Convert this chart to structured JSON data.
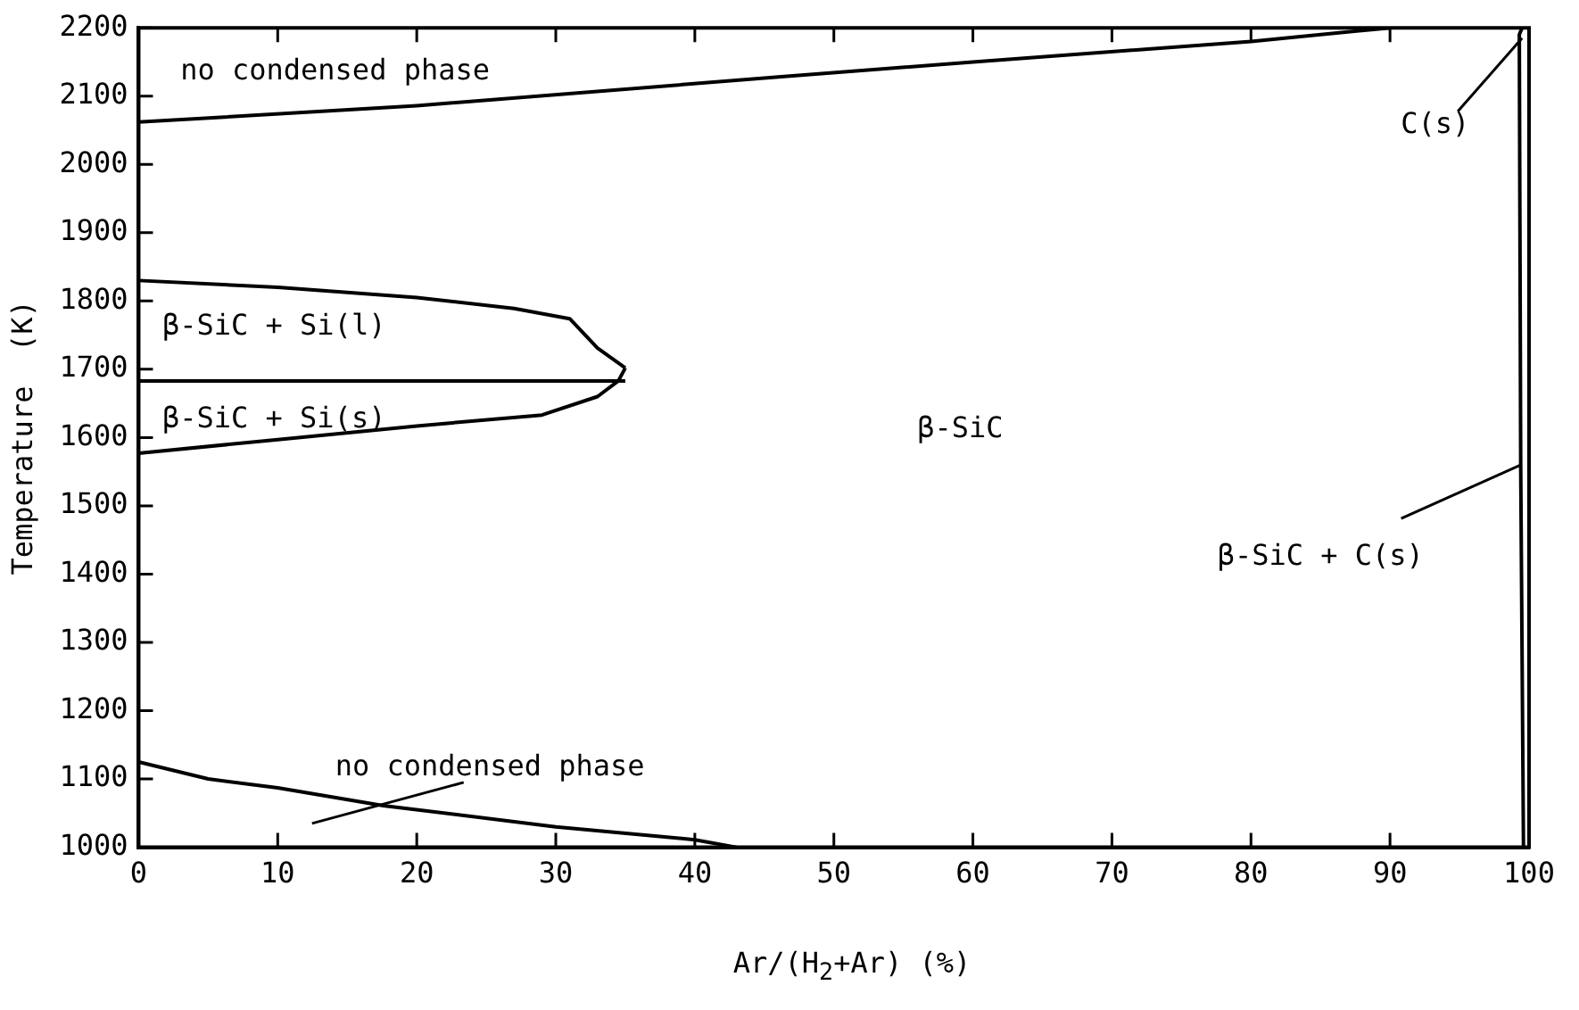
{
  "chart_data": {
    "type": "line",
    "xlabel": "Ar/(H$_{2}$+Ar)  (%)",
    "ylabel": "Temperature  (K)",
    "xlim": [
      0,
      100
    ],
    "xticks": [
      0,
      10,
      20,
      30,
      40,
      50,
      60,
      70,
      80,
      90,
      100
    ],
    "ylim": [
      1000,
      2200
    ],
    "yticks": [
      1000,
      1100,
      1200,
      1300,
      1400,
      1500,
      1600,
      1700,
      1800,
      1900,
      2000,
      2100,
      2200
    ],
    "grid": false,
    "legend": false,
    "marker": "none",
    "line_style": "solid",
    "series": [
      {
        "color": "#000000",
        "x": [
          0,
          20,
          46,
          60,
          80,
          90
        ],
        "values": [
          2062,
          2086,
          2128,
          2150,
          2180,
          2200
        ]
      },
      {
        "color": "#000000",
        "x": [
          0,
          10,
          20,
          27,
          31,
          33,
          35
        ],
        "values": [
          1830,
          1820,
          1805,
          1789,
          1774,
          1731,
          1702
        ]
      },
      {
        "color": "#000000",
        "x": [
          0,
          35
        ],
        "values": [
          1683,
          1683
        ]
      },
      {
        "color": "#000000",
        "x": [
          0,
          10,
          20,
          29,
          33,
          34.5,
          35
        ],
        "values": [
          1577,
          1597,
          1617,
          1633,
          1660,
          1683,
          1702
        ]
      },
      {
        "color": "#000000",
        "x": [
          0,
          5,
          10,
          17.6,
          30,
          40,
          43
        ],
        "values": [
          1125,
          1100,
          1087,
          1061,
          1030,
          1011,
          1000
        ]
      },
      {
        "color": "#000000",
        "x": [
          99.6,
          99.4,
          99.3,
          99.5
        ],
        "values": [
          1000,
          1560,
          2190,
          2200
        ]
      }
    ],
    "annotations": [
      "no condensed phase",
      "β-SiC + Si(l)",
      "β-SiC + Si(s)",
      "β-SiC",
      {
        "text": "no condensed phase",
        "x": 17.6,
        "y": 1061
      },
      {
        "text": "C(s)",
        "x": 99.5,
        "y": 2185
      },
      {
        "text": "β-SiC + C(s)",
        "x": 99.4,
        "y": 1560
      }
    ]
  }
}
